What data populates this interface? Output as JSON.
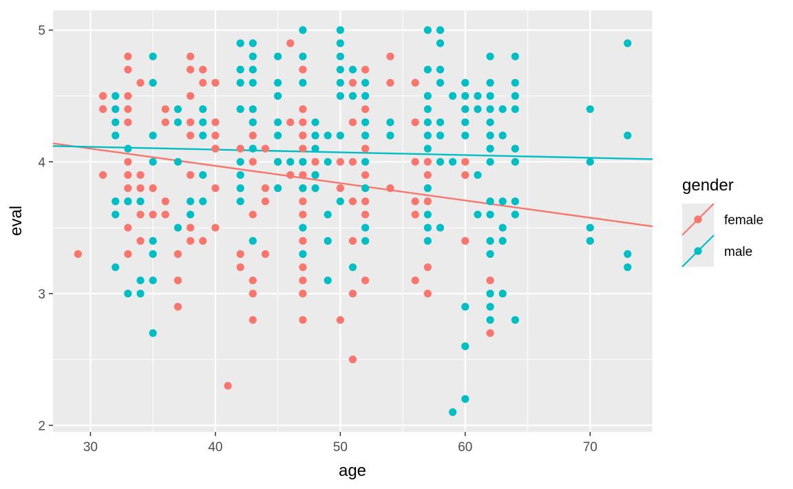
{
  "chart_data": {
    "type": "scatter",
    "xlabel": "age",
    "ylabel": "eval",
    "xlim": [
      27,
      75
    ],
    "ylim": [
      1.95,
      5.15
    ],
    "x_ticks": [
      30,
      40,
      50,
      60,
      70
    ],
    "y_ticks": [
      2,
      3,
      4,
      5
    ],
    "grid": true,
    "legend": {
      "title": "gender",
      "position": "right"
    },
    "series": [
      {
        "name": "female",
        "color": "#F8766D",
        "fit_line": {
          "x": [
            27,
            75
          ],
          "y": [
            4.14,
            3.51
          ]
        },
        "points": [
          [
            29,
            3.3
          ],
          [
            31,
            4.5
          ],
          [
            31,
            4.4
          ],
          [
            31,
            3.9
          ],
          [
            33,
            4.8
          ],
          [
            33,
            4.7
          ],
          [
            33,
            4.5
          ],
          [
            33,
            4.4
          ],
          [
            33,
            4.3
          ],
          [
            33,
            4.0
          ],
          [
            33,
            3.9
          ],
          [
            33,
            3.8
          ],
          [
            33,
            3.7
          ],
          [
            33,
            3.5
          ],
          [
            33,
            3.3
          ],
          [
            34,
            4.6
          ],
          [
            34,
            3.9
          ],
          [
            34,
            3.8
          ],
          [
            34,
            3.6
          ],
          [
            34,
            3.4
          ],
          [
            35,
            3.8
          ],
          [
            35,
            3.6
          ],
          [
            36,
            4.4
          ],
          [
            36,
            4.3
          ],
          [
            36,
            3.7
          ],
          [
            36,
            3.6
          ],
          [
            37,
            3.3
          ],
          [
            37,
            3.1
          ],
          [
            37,
            2.9
          ],
          [
            38,
            4.8
          ],
          [
            38,
            4.7
          ],
          [
            38,
            4.5
          ],
          [
            38,
            4.3
          ],
          [
            38,
            4.2
          ],
          [
            38,
            3.9
          ],
          [
            38,
            3.5
          ],
          [
            38,
            3.4
          ],
          [
            39,
            4.7
          ],
          [
            39,
            4.6
          ],
          [
            39,
            3.4
          ],
          [
            40,
            4.6
          ],
          [
            40,
            4.3
          ],
          [
            40,
            4.2
          ],
          [
            40,
            4.1
          ],
          [
            40,
            3.8
          ],
          [
            40,
            3.5
          ],
          [
            41,
            2.3
          ],
          [
            42,
            4.1
          ],
          [
            42,
            3.3
          ],
          [
            42,
            3.2
          ],
          [
            43,
            4.3
          ],
          [
            43,
            4.2
          ],
          [
            43,
            4.0
          ],
          [
            43,
            3.6
          ],
          [
            43,
            3.1
          ],
          [
            43,
            3.0
          ],
          [
            43,
            2.8
          ],
          [
            44,
            4.1
          ],
          [
            44,
            3.8
          ],
          [
            44,
            3.7
          ],
          [
            44,
            3.3
          ],
          [
            45,
            4.0
          ],
          [
            46,
            4.9
          ],
          [
            46,
            4.3
          ],
          [
            46,
            3.9
          ],
          [
            47,
            4.7
          ],
          [
            47,
            4.4
          ],
          [
            47,
            4.3
          ],
          [
            47,
            4.2
          ],
          [
            47,
            4.1
          ],
          [
            47,
            4.0
          ],
          [
            47,
            3.9
          ],
          [
            47,
            3.8
          ],
          [
            47,
            3.7
          ],
          [
            47,
            3.6
          ],
          [
            47,
            3.4
          ],
          [
            47,
            3.2
          ],
          [
            47,
            3.1
          ],
          [
            47,
            3.0
          ],
          [
            47,
            2.8
          ],
          [
            48,
            4.0
          ],
          [
            48,
            3.9
          ],
          [
            50,
            4.0
          ],
          [
            50,
            3.8
          ],
          [
            50,
            2.8
          ],
          [
            51,
            4.6
          ],
          [
            51,
            4.5
          ],
          [
            51,
            4.3
          ],
          [
            51,
            4.0
          ],
          [
            51,
            3.7
          ],
          [
            51,
            3.4
          ],
          [
            51,
            3.0
          ],
          [
            51,
            2.5
          ],
          [
            52,
            4.7
          ],
          [
            52,
            4.4
          ],
          [
            52,
            4.1
          ],
          [
            52,
            3.9
          ],
          [
            52,
            3.7
          ],
          [
            52,
            3.6
          ],
          [
            52,
            3.1
          ],
          [
            54,
            4.8
          ],
          [
            54,
            4.6
          ],
          [
            54,
            3.8
          ],
          [
            56,
            4.6
          ],
          [
            56,
            4.3
          ],
          [
            56,
            4.0
          ],
          [
            56,
            3.7
          ],
          [
            56,
            3.6
          ],
          [
            56,
            3.1
          ],
          [
            57,
            4.0
          ],
          [
            57,
            3.9
          ],
          [
            57,
            3.7
          ],
          [
            57,
            3.2
          ],
          [
            57,
            3.0
          ],
          [
            60,
            4.4
          ],
          [
            60,
            4.0
          ],
          [
            60,
            3.9
          ],
          [
            60,
            3.4
          ],
          [
            62,
            3.1
          ],
          [
            62,
            2.7
          ]
        ]
      },
      {
        "name": "male",
        "color": "#00BFC4",
        "fit_line": {
          "x": [
            27,
            75
          ],
          "y": [
            4.12,
            4.02
          ]
        },
        "points": [
          [
            32,
            4.5
          ],
          [
            32,
            4.4
          ],
          [
            32,
            4.3
          ],
          [
            32,
            4.2
          ],
          [
            32,
            3.7
          ],
          [
            32,
            3.6
          ],
          [
            32,
            3.2
          ],
          [
            33,
            4.1
          ],
          [
            33,
            3.7
          ],
          [
            33,
            3.0
          ],
          [
            34,
            3.7
          ],
          [
            34,
            3.1
          ],
          [
            34,
            3.0
          ],
          [
            35,
            4.8
          ],
          [
            35,
            4.6
          ],
          [
            35,
            4.2
          ],
          [
            35,
            4.0
          ],
          [
            35,
            3.4
          ],
          [
            35,
            3.3
          ],
          [
            35,
            3.1
          ],
          [
            35,
            2.7
          ],
          [
            37,
            4.4
          ],
          [
            37,
            4.3
          ],
          [
            37,
            4.0
          ],
          [
            37,
            3.5
          ],
          [
            38,
            3.7
          ],
          [
            38,
            3.6
          ],
          [
            39,
            4.4
          ],
          [
            39,
            4.3
          ],
          [
            39,
            4.2
          ],
          [
            39,
            3.9
          ],
          [
            39,
            3.7
          ],
          [
            42,
            4.9
          ],
          [
            42,
            4.7
          ],
          [
            42,
            4.6
          ],
          [
            42,
            4.4
          ],
          [
            42,
            4.0
          ],
          [
            42,
            3.9
          ],
          [
            42,
            3.8
          ],
          [
            42,
            3.7
          ],
          [
            43,
            4.9
          ],
          [
            43,
            4.8
          ],
          [
            43,
            4.7
          ],
          [
            43,
            4.6
          ],
          [
            43,
            4.4
          ],
          [
            43,
            4.3
          ],
          [
            43,
            4.1
          ],
          [
            43,
            3.4
          ],
          [
            45,
            4.8
          ],
          [
            45,
            4.6
          ],
          [
            45,
            4.5
          ],
          [
            45,
            4.3
          ],
          [
            45,
            4.2
          ],
          [
            45,
            4.0
          ],
          [
            45,
            3.8
          ],
          [
            46,
            4.0
          ],
          [
            47,
            5.0
          ],
          [
            47,
            4.8
          ],
          [
            47,
            4.6
          ],
          [
            47,
            4.0
          ],
          [
            47,
            3.8
          ],
          [
            47,
            3.5
          ],
          [
            47,
            3.3
          ],
          [
            48,
            4.3
          ],
          [
            48,
            4.2
          ],
          [
            48,
            4.1
          ],
          [
            48,
            3.9
          ],
          [
            48,
            3.8
          ],
          [
            49,
            4.2
          ],
          [
            49,
            4.0
          ],
          [
            49,
            3.6
          ],
          [
            49,
            3.4
          ],
          [
            49,
            3.1
          ],
          [
            50,
            5.0
          ],
          [
            50,
            4.9
          ],
          [
            50,
            4.8
          ],
          [
            50,
            4.7
          ],
          [
            50,
            4.6
          ],
          [
            50,
            4.5
          ],
          [
            50,
            4.2
          ],
          [
            50,
            3.7
          ],
          [
            51,
            4.7
          ],
          [
            51,
            4.5
          ],
          [
            51,
            3.2
          ],
          [
            52,
            4.6
          ],
          [
            52,
            4.5
          ],
          [
            52,
            4.3
          ],
          [
            52,
            4.2
          ],
          [
            52,
            4.0
          ],
          [
            52,
            3.8
          ],
          [
            52,
            3.5
          ],
          [
            52,
            3.4
          ],
          [
            54,
            4.3
          ],
          [
            54,
            4.2
          ],
          [
            57,
            5.0
          ],
          [
            57,
            4.7
          ],
          [
            57,
            4.5
          ],
          [
            57,
            4.4
          ],
          [
            57,
            4.3
          ],
          [
            57,
            4.2
          ],
          [
            57,
            4.1
          ],
          [
            57,
            3.8
          ],
          [
            57,
            3.6
          ],
          [
            57,
            3.5
          ],
          [
            57,
            3.4
          ],
          [
            58,
            5.0
          ],
          [
            58,
            4.9
          ],
          [
            58,
            4.7
          ],
          [
            58,
            4.6
          ],
          [
            58,
            4.3
          ],
          [
            58,
            4.2
          ],
          [
            58,
            4.0
          ],
          [
            58,
            3.5
          ],
          [
            59,
            4.5
          ],
          [
            59,
            4.0
          ],
          [
            59,
            2.1
          ],
          [
            60,
            4.6
          ],
          [
            60,
            4.5
          ],
          [
            60,
            4.4
          ],
          [
            60,
            4.3
          ],
          [
            60,
            4.2
          ],
          [
            60,
            2.9
          ],
          [
            60,
            2.6
          ],
          [
            60,
            2.2
          ],
          [
            61,
            4.5
          ],
          [
            61,
            4.4
          ],
          [
            61,
            3.9
          ],
          [
            61,
            3.6
          ],
          [
            62,
            4.8
          ],
          [
            62,
            4.6
          ],
          [
            62,
            4.5
          ],
          [
            62,
            4.4
          ],
          [
            62,
            4.3
          ],
          [
            62,
            4.2
          ],
          [
            62,
            4.1
          ],
          [
            62,
            4.0
          ],
          [
            62,
            3.7
          ],
          [
            62,
            3.6
          ],
          [
            62,
            3.4
          ],
          [
            62,
            3.3
          ],
          [
            62,
            3.0
          ],
          [
            62,
            2.9
          ],
          [
            62,
            2.8
          ],
          [
            63,
            4.4
          ],
          [
            63,
            4.2
          ],
          [
            63,
            3.7
          ],
          [
            63,
            3.5
          ],
          [
            63,
            3.4
          ],
          [
            63,
            3.0
          ],
          [
            64,
            4.8
          ],
          [
            64,
            4.6
          ],
          [
            64,
            4.5
          ],
          [
            64,
            4.4
          ],
          [
            64,
            4.1
          ],
          [
            64,
            4.0
          ],
          [
            64,
            3.7
          ],
          [
            64,
            3.6
          ],
          [
            64,
            2.8
          ],
          [
            70,
            4.4
          ],
          [
            70,
            4.0
          ],
          [
            70,
            3.5
          ],
          [
            70,
            3.4
          ],
          [
            73,
            4.9
          ],
          [
            73,
            4.2
          ],
          [
            73,
            3.3
          ],
          [
            73,
            3.2
          ]
        ]
      }
    ]
  }
}
